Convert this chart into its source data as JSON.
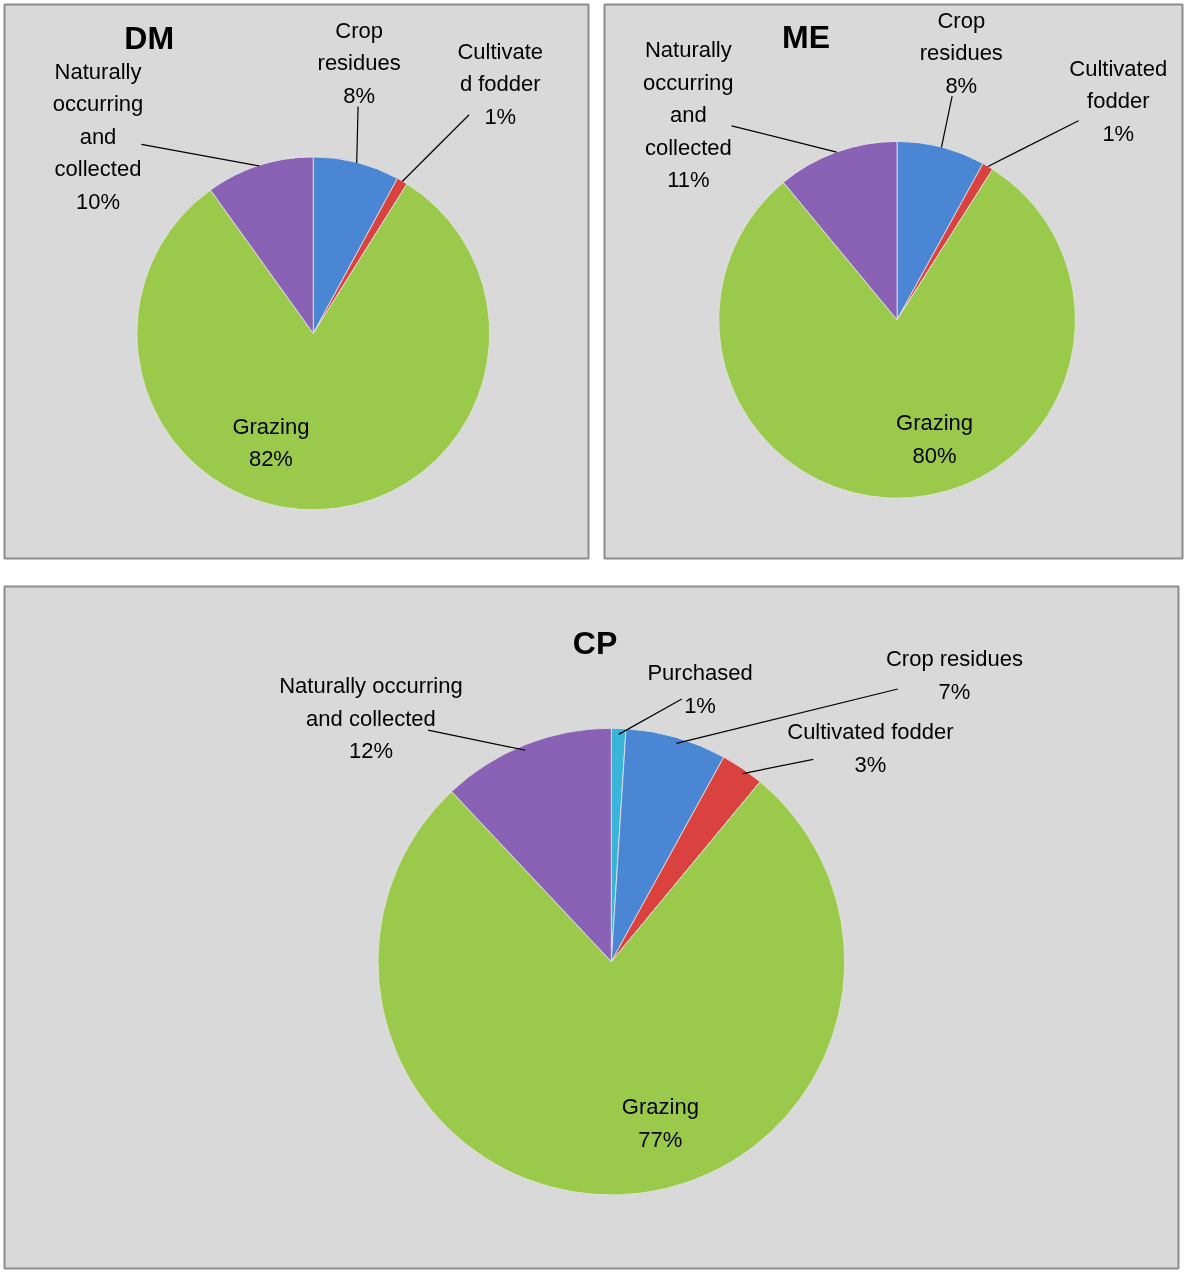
{
  "chart_data": [
    {
      "type": "pie",
      "title": "DM",
      "categories": [
        "Crop residues",
        "Cultivated fodder",
        "Grazing",
        "Naturally occurring and collected"
      ],
      "values": [
        8,
        1,
        82,
        10
      ],
      "value_labels": [
        "8%",
        "1%",
        "82%",
        "10%"
      ],
      "colors": [
        "#4a86d4",
        "#d9423e",
        "#9bc94c",
        "#8a62b5"
      ],
      "legend": false
    },
    {
      "type": "pie",
      "title": "ME",
      "categories": [
        "Crop residues",
        "Cultivated fodder",
        "Grazing",
        "Naturally occurring and collected"
      ],
      "values": [
        8,
        1,
        80,
        11
      ],
      "value_labels": [
        "8%",
        "1%",
        "80%",
        "11%"
      ],
      "colors": [
        "#4a86d4",
        "#d9423e",
        "#9bc94c",
        "#8a62b5"
      ],
      "legend": false
    },
    {
      "type": "pie",
      "title": "CP",
      "categories": [
        "Purchased",
        "Crop residues",
        "Cultivated fodder",
        "Grazing",
        "Naturally occurring and collected"
      ],
      "values": [
        1,
        7,
        3,
        77,
        12
      ],
      "value_labels": [
        "1%",
        "7%",
        "3%",
        "77%",
        "12%"
      ],
      "colors": [
        "#3ab4d8",
        "#4a86d4",
        "#d9423e",
        "#9bc94c",
        "#8a62b5"
      ],
      "legend": false
    }
  ]
}
